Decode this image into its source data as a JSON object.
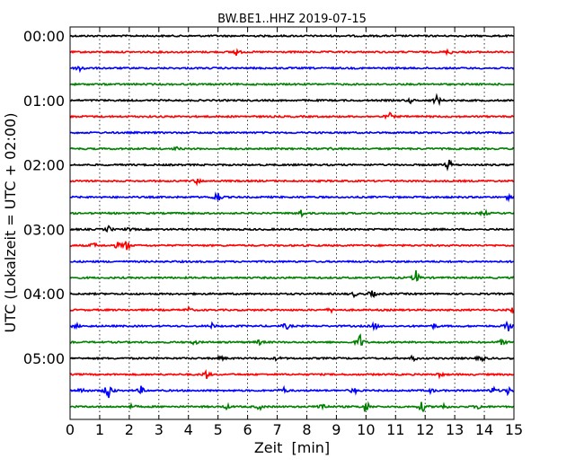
{
  "chart_data": {
    "type": "line",
    "title": "BW.BE1..HHZ 2019-07-15",
    "xlabel": "Zeit  [min]",
    "ylabel": "UTC (Lokalzeit = UTC + 02:00)",
    "xlim": [
      0,
      15
    ],
    "x_ticks": [
      "0",
      "1",
      "2",
      "3",
      "4",
      "5",
      "6",
      "7",
      "8",
      "9",
      "10",
      "11",
      "12",
      "13",
      "14",
      "15"
    ],
    "y_tick_labels": [
      "00:00",
      "01:00",
      "02:00",
      "03:00",
      "04:00",
      "05:00"
    ],
    "y_tick_rows": [
      0,
      4,
      8,
      12,
      16,
      20
    ],
    "grid": "vertical dotted",
    "row_interval_min": 15,
    "colors": [
      "#000000",
      "#ff0000",
      "#0000ff",
      "#008000"
    ],
    "traces": [
      {
        "start": "00:00",
        "events": []
      },
      {
        "start": "00:15",
        "events": [
          [
            5.6,
            0.5
          ],
          [
            12.8,
            0.4
          ]
        ]
      },
      {
        "start": "00:30",
        "events": [
          [
            0.35,
            0.6
          ]
        ]
      },
      {
        "start": "00:45",
        "events": []
      },
      {
        "start": "01:00",
        "events": [
          [
            12.4,
            0.8
          ],
          [
            11.5,
            0.3
          ]
        ]
      },
      {
        "start": "01:15",
        "events": [
          [
            10.8,
            0.5
          ]
        ]
      },
      {
        "start": "01:30",
        "events": []
      },
      {
        "start": "01:45",
        "events": [
          [
            3.6,
            0.2
          ],
          [
            8.8,
            0.2
          ]
        ]
      },
      {
        "start": "02:00",
        "events": [
          [
            12.8,
            0.8
          ]
        ]
      },
      {
        "start": "02:15",
        "events": [
          [
            4.3,
            0.4
          ]
        ]
      },
      {
        "start": "02:30",
        "events": [
          [
            5.0,
            0.6
          ],
          [
            4.9,
            0.3
          ],
          [
            14.8,
            0.3
          ]
        ]
      },
      {
        "start": "02:45",
        "events": [
          [
            7.8,
            0.5
          ],
          [
            14.0,
            0.4
          ]
        ]
      },
      {
        "start": "03:00",
        "events": [
          [
            1.3,
            0.4
          ],
          [
            2.0,
            0.2
          ]
        ]
      },
      {
        "start": "03:15",
        "events": [
          [
            1.9,
            0.8
          ],
          [
            0.8,
            0.4
          ],
          [
            1.6,
            0.4
          ]
        ]
      },
      {
        "start": "03:30",
        "events": []
      },
      {
        "start": "03:45",
        "events": [
          [
            11.7,
            1.0
          ]
        ]
      },
      {
        "start": "04:00",
        "events": [
          [
            10.2,
            0.6
          ],
          [
            9.6,
            0.3
          ]
        ]
      },
      {
        "start": "04:15",
        "events": [
          [
            15.0,
            0.5
          ],
          [
            8.8,
            0.3
          ],
          [
            4.0,
            0.3
          ]
        ]
      },
      {
        "start": "04:30",
        "events": [
          [
            7.3,
            0.5
          ],
          [
            10.3,
            0.5
          ],
          [
            14.8,
            0.7
          ],
          [
            0.2,
            0.3
          ],
          [
            4.8,
            0.3
          ],
          [
            12.3,
            0.3
          ]
        ]
      },
      {
        "start": "04:45",
        "events": [
          [
            9.8,
            1.1
          ],
          [
            14.6,
            0.4
          ],
          [
            6.4,
            0.3
          ],
          [
            4.2,
            0.3
          ]
        ]
      },
      {
        "start": "05:00",
        "events": [
          [
            13.9,
            0.5
          ],
          [
            11.6,
            0.4
          ],
          [
            5.1,
            0.3
          ],
          [
            7.0,
            0.3
          ]
        ]
      },
      {
        "start": "05:15",
        "events": [
          [
            4.6,
            0.6
          ],
          [
            12.5,
            0.3
          ]
        ]
      },
      {
        "start": "05:30",
        "events": [
          [
            1.3,
            1.4
          ],
          [
            0.4,
            0.5
          ],
          [
            2.4,
            0.5
          ],
          [
            7.2,
            0.5
          ],
          [
            9.6,
            0.5
          ],
          [
            14.3,
            0.5
          ],
          [
            14.8,
            0.5
          ],
          [
            12.2,
            0.3
          ]
        ]
      },
      {
        "start": "05:45",
        "events": [
          [
            8.5,
            0.8
          ],
          [
            10.0,
            1.0
          ],
          [
            11.9,
            0.8
          ],
          [
            12.6,
            0.5
          ],
          [
            6.4,
            0.4
          ],
          [
            13.8,
            0.3
          ],
          [
            5.3,
            0.3
          ],
          [
            2.1,
            0.3
          ]
        ]
      }
    ]
  }
}
